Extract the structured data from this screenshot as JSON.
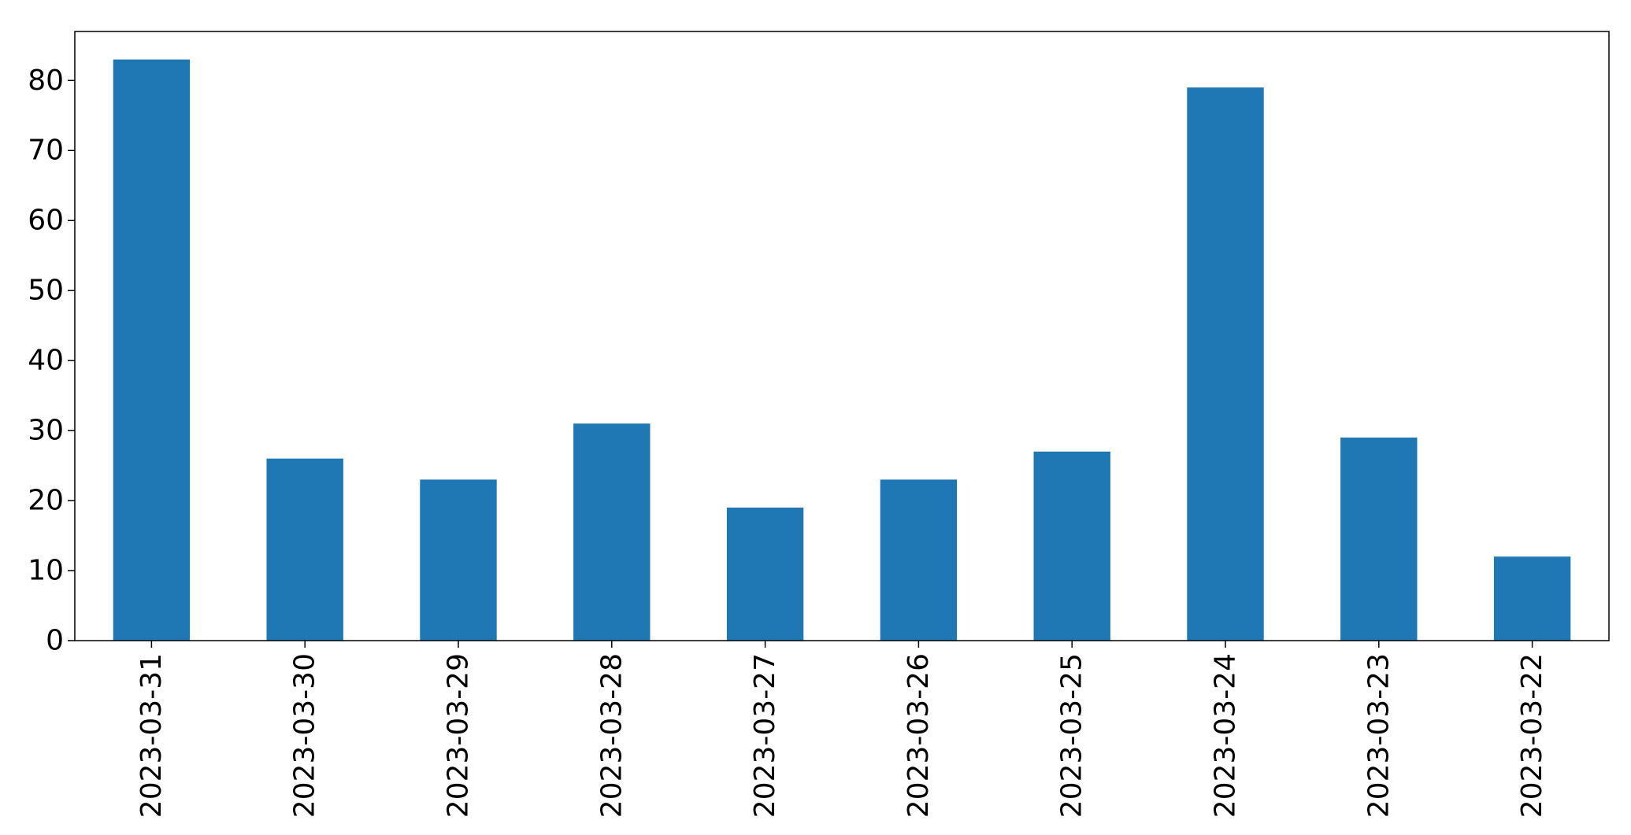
{
  "chart_data": {
    "type": "bar",
    "title": "",
    "xlabel": "",
    "ylabel": "",
    "categories": [
      "2023-03-31",
      "2023-03-30",
      "2023-03-29",
      "2023-03-28",
      "2023-03-27",
      "2023-03-26",
      "2023-03-25",
      "2023-03-24",
      "2023-03-23",
      "2023-03-22"
    ],
    "values": [
      83,
      26,
      23,
      31,
      19,
      23,
      27,
      79,
      29,
      12
    ],
    "ylim": [
      0,
      87
    ],
    "yticks": [
      0,
      10,
      20,
      30,
      40,
      50,
      60,
      70,
      80
    ],
    "grid": false,
    "legend": "none",
    "bar_color": "#1f77b4",
    "x_tick_rotation": "vertical"
  }
}
